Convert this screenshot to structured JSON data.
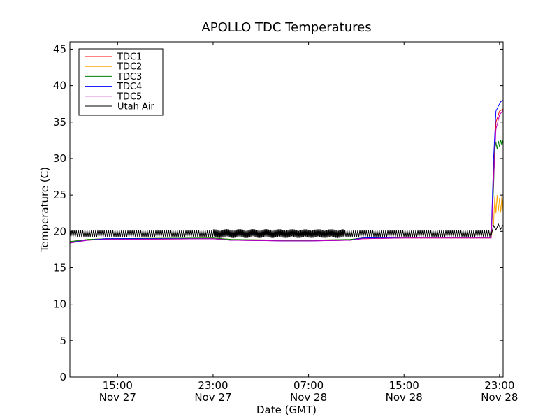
{
  "chart_data": {
    "type": "line",
    "title": "APOLLO TDC Temperatures",
    "xlabel": "Date (GMT)",
    "ylabel": "Temperature (C)",
    "x_unit": "hours since Nov 27 11:00 GMT",
    "xlim": [
      0,
      36.3
    ],
    "ylim": [
      0,
      46
    ],
    "yticks": [
      0,
      5,
      10,
      15,
      20,
      25,
      30,
      35,
      40,
      45
    ],
    "xticks": [
      {
        "x": 4,
        "time": "15:00",
        "date": "Nov 27"
      },
      {
        "x": 12,
        "time": "23:00",
        "date": "Nov 27"
      },
      {
        "x": 20,
        "time": "07:00",
        "date": "Nov 28"
      },
      {
        "x": 28,
        "time": "15:00",
        "date": "Nov 28"
      },
      {
        "x": 36,
        "time": "23:00",
        "date": "Nov 28"
      }
    ],
    "legend_position": "top-left",
    "series": [
      {
        "name": "TDC1",
        "color": "#ff0000",
        "x": [
          0,
          1.5,
          3,
          12,
          13.5,
          18,
          20,
          23.5,
          24.5,
          28,
          35.3,
          35.5,
          35.7,
          36.0,
          36.3
        ],
        "y": [
          18.5,
          18.8,
          18.9,
          19.0,
          18.8,
          18.7,
          18.7,
          18.8,
          19.0,
          19.1,
          19.1,
          28.0,
          35.0,
          36.5,
          36.8
        ]
      },
      {
        "name": "TDC2",
        "color": "#ffa500",
        "x": [
          0,
          1.5,
          3,
          12,
          13.5,
          18,
          20,
          23.5,
          24.5,
          28,
          35.3,
          35.5,
          35.6,
          35.7,
          35.8,
          35.9,
          36.0,
          36.1,
          36.2,
          36.3
        ],
        "y": [
          18.6,
          18.9,
          19.0,
          19.1,
          18.9,
          18.8,
          18.8,
          18.9,
          19.1,
          19.2,
          19.2,
          21.0,
          24.8,
          22.5,
          25.0,
          22.8,
          24.6,
          22.6,
          25.0,
          22.7
        ]
      },
      {
        "name": "TDC3",
        "color": "#008000",
        "x": [
          0,
          1.5,
          3,
          12,
          13.5,
          18,
          20,
          23.5,
          24.5,
          28,
          35.3,
          35.5,
          35.6,
          35.7,
          35.8,
          35.9,
          36.0,
          36.1,
          36.2,
          36.3
        ],
        "y": [
          18.6,
          18.9,
          19.0,
          19.1,
          18.9,
          18.8,
          18.8,
          18.9,
          19.1,
          19.2,
          19.2,
          26.0,
          31.2,
          32.2,
          31.3,
          32.4,
          31.6,
          32.5,
          31.8,
          32.6
        ]
      },
      {
        "name": "TDC4",
        "color": "#0000ff",
        "x": [
          0,
          1.5,
          3,
          12,
          13.5,
          18,
          20,
          23.5,
          24.5,
          28,
          35.3,
          35.5,
          35.7,
          35.9,
          36.1,
          36.3
        ],
        "y": [
          18.5,
          18.8,
          19.0,
          19.0,
          18.8,
          18.7,
          18.7,
          18.8,
          19.1,
          19.2,
          19.2,
          30.0,
          36.5,
          37.2,
          37.8,
          38.0
        ]
      },
      {
        "name": "TDC5",
        "color": "#bf00bf",
        "x": [
          0,
          1.5,
          3,
          12,
          13.5,
          18,
          20,
          23.5,
          24.5,
          28,
          35.3,
          35.5,
          35.7,
          36.0,
          36.3
        ],
        "y": [
          18.4,
          18.8,
          18.9,
          19.0,
          18.8,
          18.7,
          18.7,
          18.8,
          19.0,
          19.1,
          19.1,
          27.0,
          34.0,
          36.0,
          36.6
        ]
      },
      {
        "name": "Utah Air",
        "color": "#000000",
        "baseline": 19.7,
        "amplitude": 0.5,
        "noisy_range": [
          12,
          23
        ],
        "noisy_amplitude": 0.6,
        "x_end_normal": 35.3,
        "end_segment": {
          "x": [
            35.3,
            35.5,
            35.7,
            35.9,
            36.1,
            36.3
          ],
          "y": [
            19.5,
            20.8,
            20.2,
            21.0,
            20.3,
            20.9
          ]
        }
      }
    ]
  }
}
